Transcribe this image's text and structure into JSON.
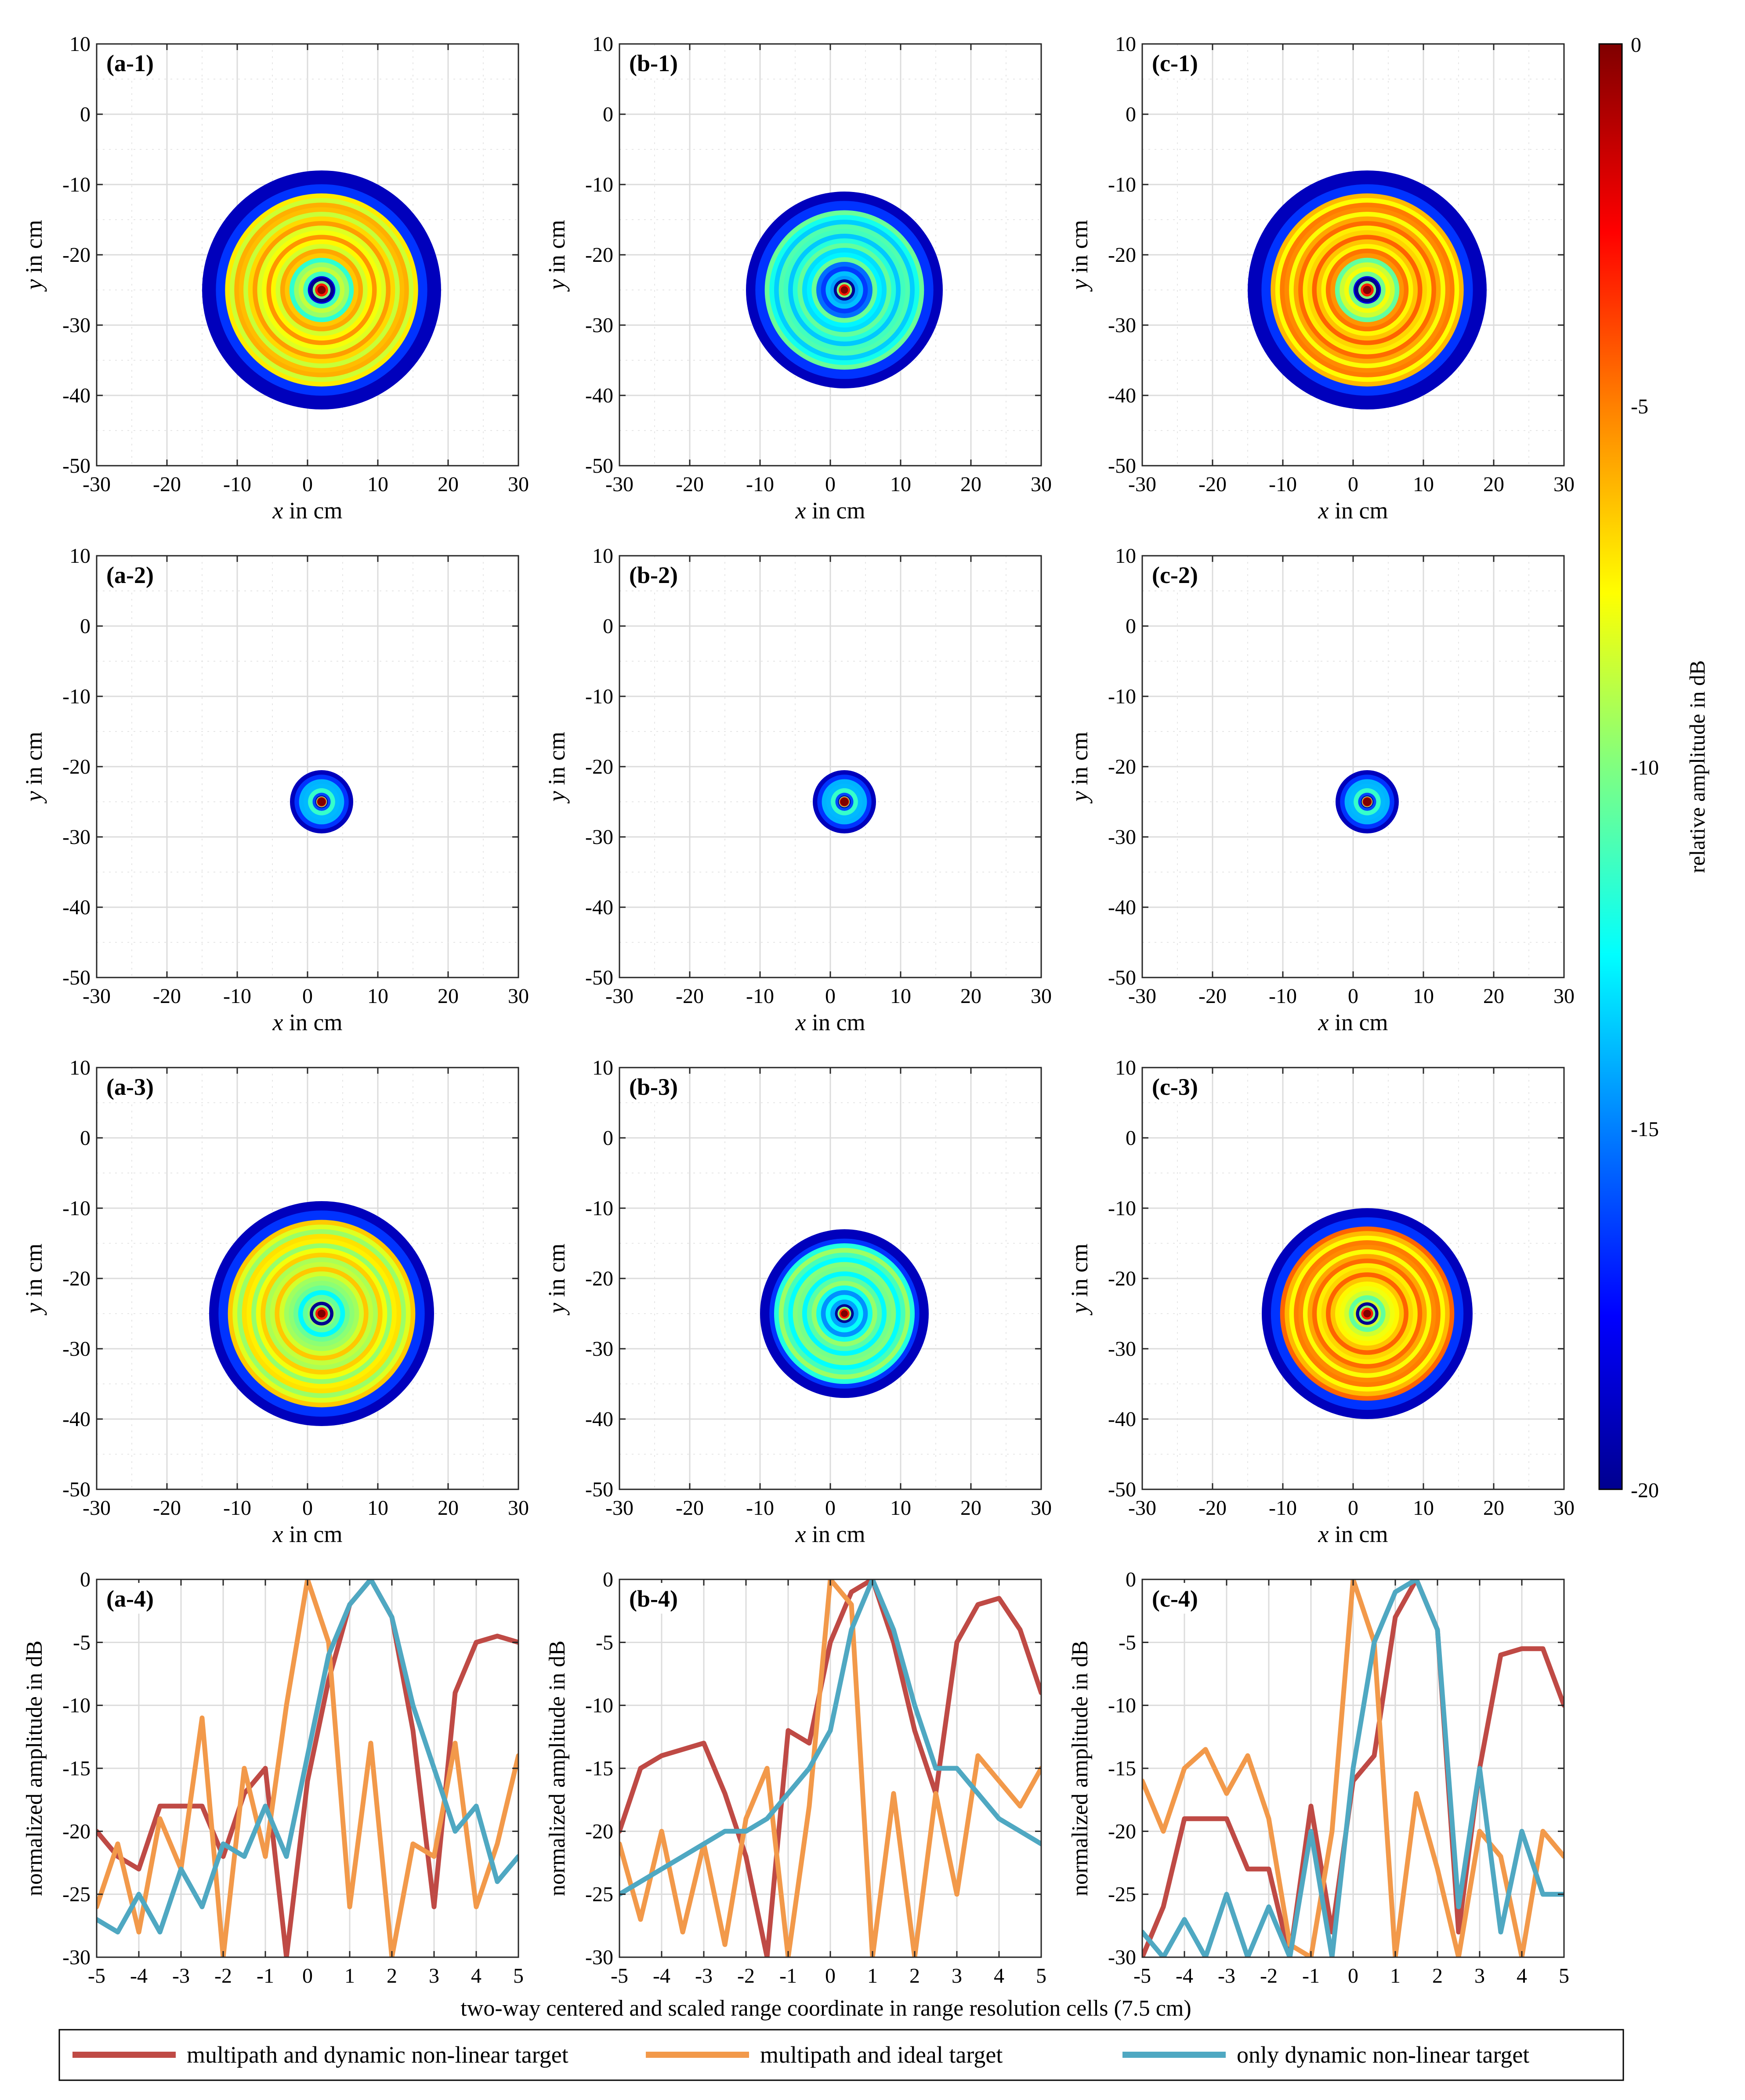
{
  "figure": {
    "colorbar_label": "relative amplitude in dB",
    "colorbar_ticks": [
      "0",
      "-5",
      "-10",
      "-15",
      "-20"
    ],
    "colorbar_range": [
      -20,
      0
    ],
    "colormap": [
      "#00008f",
      "#0000ff",
      "#0080ff",
      "#00ffff",
      "#80ff80",
      "#ffff00",
      "#ff8000",
      "#ff0000",
      "#800000"
    ],
    "image_xlabel": "x in cm",
    "image_ylabel": "y in cm",
    "image_xticks": [
      "-30",
      "-20",
      "-10",
      "0",
      "10",
      "20",
      "30"
    ],
    "image_yticks": [
      "10",
      "0",
      "-10",
      "-20",
      "-30",
      "-40",
      "-50"
    ],
    "image_xlim": [
      -30,
      30
    ],
    "image_ylim": [
      -50,
      10
    ],
    "target_position_cm": [
      2,
      -25
    ],
    "range_xlabel": "two-way centered and scaled range coordinate in range resolution cells (7.5 cm)",
    "range_ylabel": "normalized amplitude in dB",
    "range_xticks": [
      "-5",
      "-4",
      "-3",
      "-2",
      "-1",
      "0",
      "1",
      "2",
      "3",
      "4",
      "5"
    ],
    "range_yticks": [
      "0",
      "-5",
      "-10",
      "-15",
      "-20",
      "-25",
      "-30"
    ],
    "range_xlim": [
      -5,
      5
    ],
    "range_ylim": [
      -30,
      0
    ],
    "legend": [
      {
        "label": "multipath and dynamic non-linear target",
        "color": "#bf4a45"
      },
      {
        "label": "multipath and ideal target",
        "color": "#f2994a"
      },
      {
        "label": "only dynamic non-linear target",
        "color": "#4fa8c2"
      }
    ]
  },
  "chart_data": [
    {
      "panel": "(a-1)",
      "type": "heatmap",
      "disk_radius_cm": 17,
      "ring_level_db": -7
    },
    {
      "panel": "(b-1)",
      "type": "heatmap",
      "disk_radius_cm": 14,
      "ring_level_db": -12
    },
    {
      "panel": "(c-1)",
      "type": "heatmap",
      "disk_radius_cm": 17,
      "ring_level_db": -6
    },
    {
      "panel": "(a-2)",
      "type": "heatmap",
      "disk_radius_cm": 4.5,
      "ring_level_db": -13
    },
    {
      "panel": "(b-2)",
      "type": "heatmap",
      "disk_radius_cm": 4.5,
      "ring_level_db": -13
    },
    {
      "panel": "(c-2)",
      "type": "heatmap",
      "disk_radius_cm": 4.5,
      "ring_level_db": -13
    },
    {
      "panel": "(a-3)",
      "type": "heatmap",
      "disk_radius_cm": 16,
      "ring_level_db": -8
    },
    {
      "panel": "(b-3)",
      "type": "heatmap",
      "disk_radius_cm": 12,
      "ring_level_db": -11
    },
    {
      "panel": "(c-3)",
      "type": "heatmap",
      "disk_radius_cm": 15,
      "ring_level_db": -6
    },
    {
      "panel": "(a-4)",
      "type": "line",
      "x": [
        -5,
        -4.5,
        -4,
        -3.5,
        -3,
        -2.5,
        -2,
        -1.5,
        -1,
        -0.5,
        0,
        0.5,
        1,
        1.5,
        2,
        2.5,
        3,
        3.5,
        4,
        4.5,
        5
      ],
      "series": [
        {
          "name": "multipath and dynamic non-linear target",
          "values": [
            -20,
            -22,
            -23,
            -18,
            -18,
            -18,
            -22,
            -17,
            -15,
            -30,
            -16,
            -8,
            -2,
            0,
            -3,
            -12,
            -26,
            -9,
            -5,
            -4.5,
            -5
          ]
        },
        {
          "name": "multipath and ideal target",
          "values": [
            -26,
            -21,
            -28,
            -19,
            -23,
            -11,
            -30,
            -15,
            -22,
            -10,
            0,
            -5,
            -26,
            -13,
            -30,
            -21,
            -22,
            -13,
            -26,
            -21,
            -14
          ]
        },
        {
          "name": "only dynamic non-linear target",
          "values": [
            -27,
            -28,
            -25,
            -28,
            -23,
            -26,
            -21,
            -22,
            -18,
            -22,
            -14,
            -6,
            -2,
            0,
            -3,
            -10,
            -15,
            -20,
            -18,
            -24,
            -22
          ]
        }
      ]
    },
    {
      "panel": "(b-4)",
      "type": "line",
      "x": [
        -5,
        -4.5,
        -4,
        -3.5,
        -3,
        -2.5,
        -2,
        -1.5,
        -1,
        -0.5,
        0,
        0.5,
        1,
        1.5,
        2,
        2.5,
        3,
        3.5,
        4,
        4.5,
        5
      ],
      "series": [
        {
          "name": "multipath and dynamic non-linear target",
          "values": [
            -20,
            -15,
            -14,
            -13.5,
            -13,
            -17,
            -22,
            -30,
            -12,
            -13,
            -5,
            -1,
            0,
            -5,
            -12,
            -17,
            -5,
            -2,
            -1.5,
            -4,
            -9
          ]
        },
        {
          "name": "multipath and ideal target",
          "values": [
            -21,
            -27,
            -20,
            -28,
            -21,
            -29,
            -19,
            -15,
            -30,
            -18,
            0,
            -2,
            -30,
            -17,
            -30,
            -17,
            -25,
            -14,
            -16,
            -18,
            -15
          ]
        },
        {
          "name": "only dynamic non-linear target",
          "values": [
            -25,
            -24,
            -23,
            -22,
            -21,
            -20,
            -20,
            -19,
            -17,
            -15,
            -12,
            -4,
            0,
            -4,
            -10,
            -15,
            -15,
            -17,
            -19,
            -20,
            -21
          ]
        }
      ]
    },
    {
      "panel": "(c-4)",
      "type": "line",
      "x": [
        -5,
        -4.5,
        -4,
        -3.5,
        -3,
        -2.5,
        -2,
        -1.5,
        -1,
        -0.5,
        0,
        0.5,
        1,
        1.5,
        2,
        2.5,
        3,
        3.5,
        4,
        4.5,
        5
      ],
      "series": [
        {
          "name": "multipath and dynamic non-linear target",
          "values": [
            -30,
            -26,
            -19,
            -19,
            -19,
            -23,
            -23,
            -30,
            -18,
            -28,
            -16,
            -14,
            -3,
            0,
            -4,
            -28,
            -15,
            -6,
            -5.5,
            -5.5,
            -10
          ]
        },
        {
          "name": "multipath and ideal target",
          "values": [
            -16,
            -20,
            -15,
            -13.5,
            -17,
            -14,
            -19,
            -29,
            -30,
            -20,
            0,
            -5,
            -30,
            -17,
            -23,
            -30,
            -20,
            -22,
            -30,
            -20,
            -22
          ]
        },
        {
          "name": "only dynamic non-linear target",
          "values": [
            -28,
            -30,
            -27,
            -30,
            -25,
            -30,
            -26,
            -30,
            -20,
            -30,
            -15,
            -5,
            -1,
            0,
            -4,
            -26,
            -15,
            -28,
            -20,
            -25,
            -25
          ]
        }
      ]
    }
  ]
}
